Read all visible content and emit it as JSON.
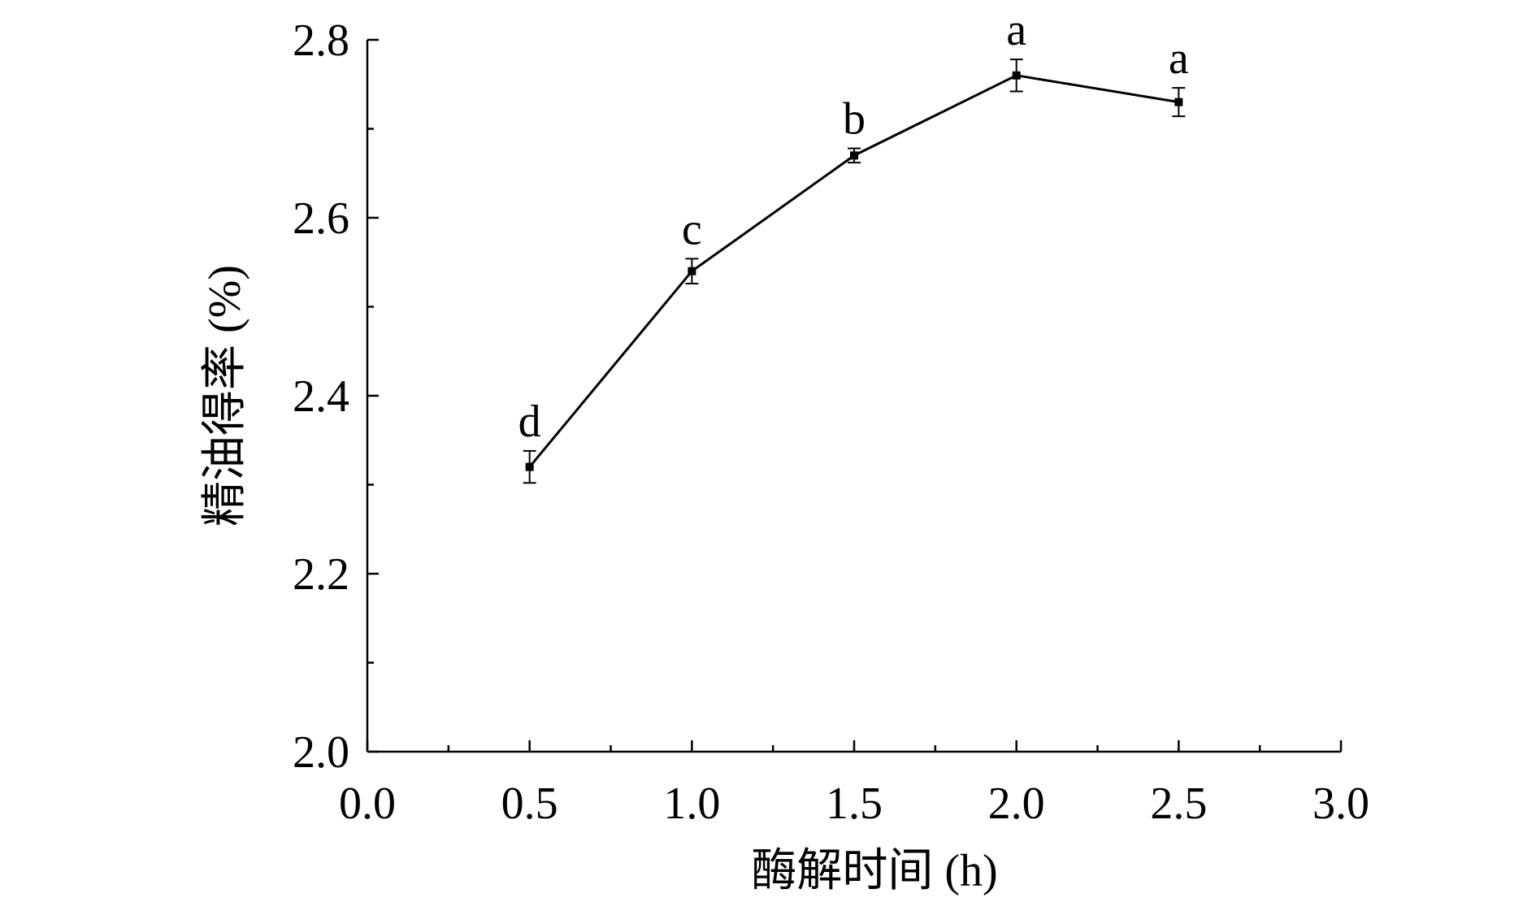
{
  "chart_data": {
    "type": "line",
    "xlabel": "酶解时间 (h)",
    "ylabel": "精油得率 (%)",
    "xlim": [
      0.0,
      3.0
    ],
    "ylim": [
      2.0,
      2.8
    ],
    "x_ticks": [
      "0.0",
      "0.5",
      "1.0",
      "1.5",
      "2.0",
      "2.5",
      "3.0"
    ],
    "y_ticks": [
      "2.0",
      "2.2",
      "2.4",
      "2.6",
      "2.8"
    ],
    "grid": false,
    "series": [
      {
        "x": [
          0.5,
          1.0,
          1.5,
          2.0,
          2.5
        ],
        "y": [
          2.32,
          2.54,
          2.67,
          2.76,
          2.73
        ],
        "error": [
          0.018,
          0.014,
          0.008,
          0.018,
          0.016
        ],
        "annotations": [
          "d",
          "c",
          "b",
          "a",
          "a"
        ],
        "color": "#000000"
      }
    ]
  }
}
